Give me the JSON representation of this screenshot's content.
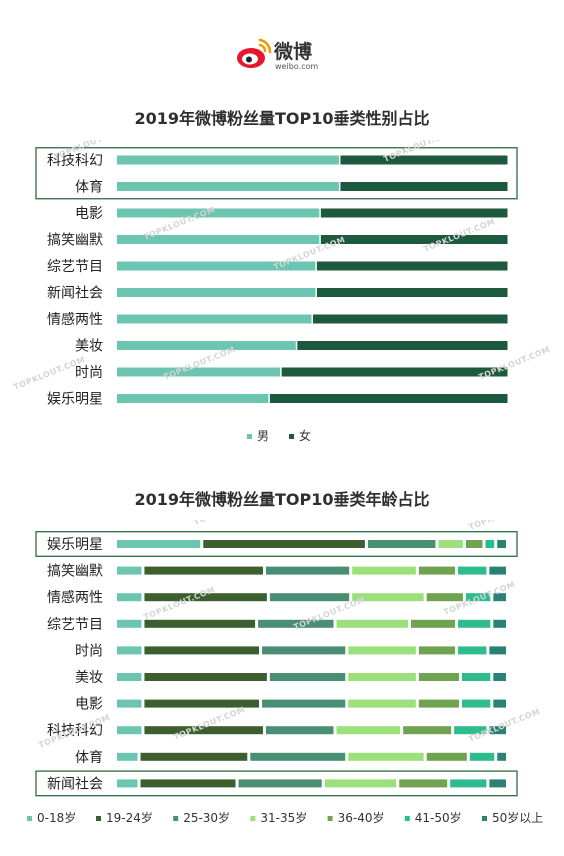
{
  "brand": {
    "name": "微博",
    "domain": "weibo.com"
  },
  "chart_data": [
    {
      "type": "bar",
      "stacked": true,
      "orientation": "horizontal",
      "normalized": true,
      "title": "2019年微博粉丝量TOP10垂类性别占比",
      "categories": [
        "科技科幻",
        "体育",
        "电影",
        "搞笑幽默",
        "综艺节目",
        "新闻社会",
        "情感两性",
        "美妆",
        "时尚",
        "娱乐明星"
      ],
      "series": [
        {
          "name": "男",
          "color": "#6cc5b0",
          "values": [
            57,
            57,
            52,
            52,
            51,
            51,
            50,
            46,
            42,
            39
          ]
        },
        {
          "name": "女",
          "color": "#1d5a3d",
          "values": [
            43,
            43,
            48,
            48,
            49,
            49,
            50,
            54,
            58,
            61
          ]
        }
      ],
      "highlighted": [
        "科技科幻",
        "体育"
      ],
      "legend": "bottom"
    },
    {
      "type": "bar",
      "stacked": true,
      "orientation": "horizontal",
      "normalized": true,
      "title": "2019年微博粉丝量TOP10垂类年龄占比",
      "categories": [
        "娱乐明星",
        "搞笑幽默",
        "情感两性",
        "综艺节目",
        "时尚",
        "美妆",
        "电影",
        "科技科幻",
        "体育",
        "新闻社会"
      ],
      "series": [
        {
          "name": "0-18岁",
          "color": "#6cc5b0",
          "values": [
            22,
            7,
            7,
            7,
            7,
            7,
            7,
            7,
            6,
            6
          ]
        },
        {
          "name": "19-24岁",
          "color": "#3d5e2e",
          "values": [
            42,
            31,
            32,
            29,
            30,
            32,
            30,
            31,
            28,
            25
          ]
        },
        {
          "name": "25-30岁",
          "color": "#4a8e74",
          "values": [
            18,
            22,
            21,
            20,
            22,
            20,
            22,
            18,
            25,
            22
          ]
        },
        {
          "name": "31-35岁",
          "color": "#9be07a",
          "values": [
            7,
            17,
            19,
            19,
            18,
            18,
            18,
            17,
            20,
            19
          ]
        },
        {
          "name": "36-40岁",
          "color": "#6fa352",
          "values": [
            5,
            10,
            10,
            12,
            10,
            11,
            11,
            13,
            11,
            13
          ]
        },
        {
          "name": "41-50岁",
          "color": "#2ebc8f",
          "values": [
            3,
            8,
            7,
            9,
            8,
            8,
            8,
            9,
            7,
            10
          ]
        },
        {
          "name": "50岁以上",
          "color": "#2a8277",
          "values": [
            3,
            5,
            4,
            4,
            5,
            4,
            4,
            5,
            3,
            5
          ]
        }
      ],
      "highlighted": [
        "娱乐明星",
        "新闻社会"
      ],
      "legend": "bottom"
    }
  ],
  "watermark": "TOPKLOUT.COM"
}
